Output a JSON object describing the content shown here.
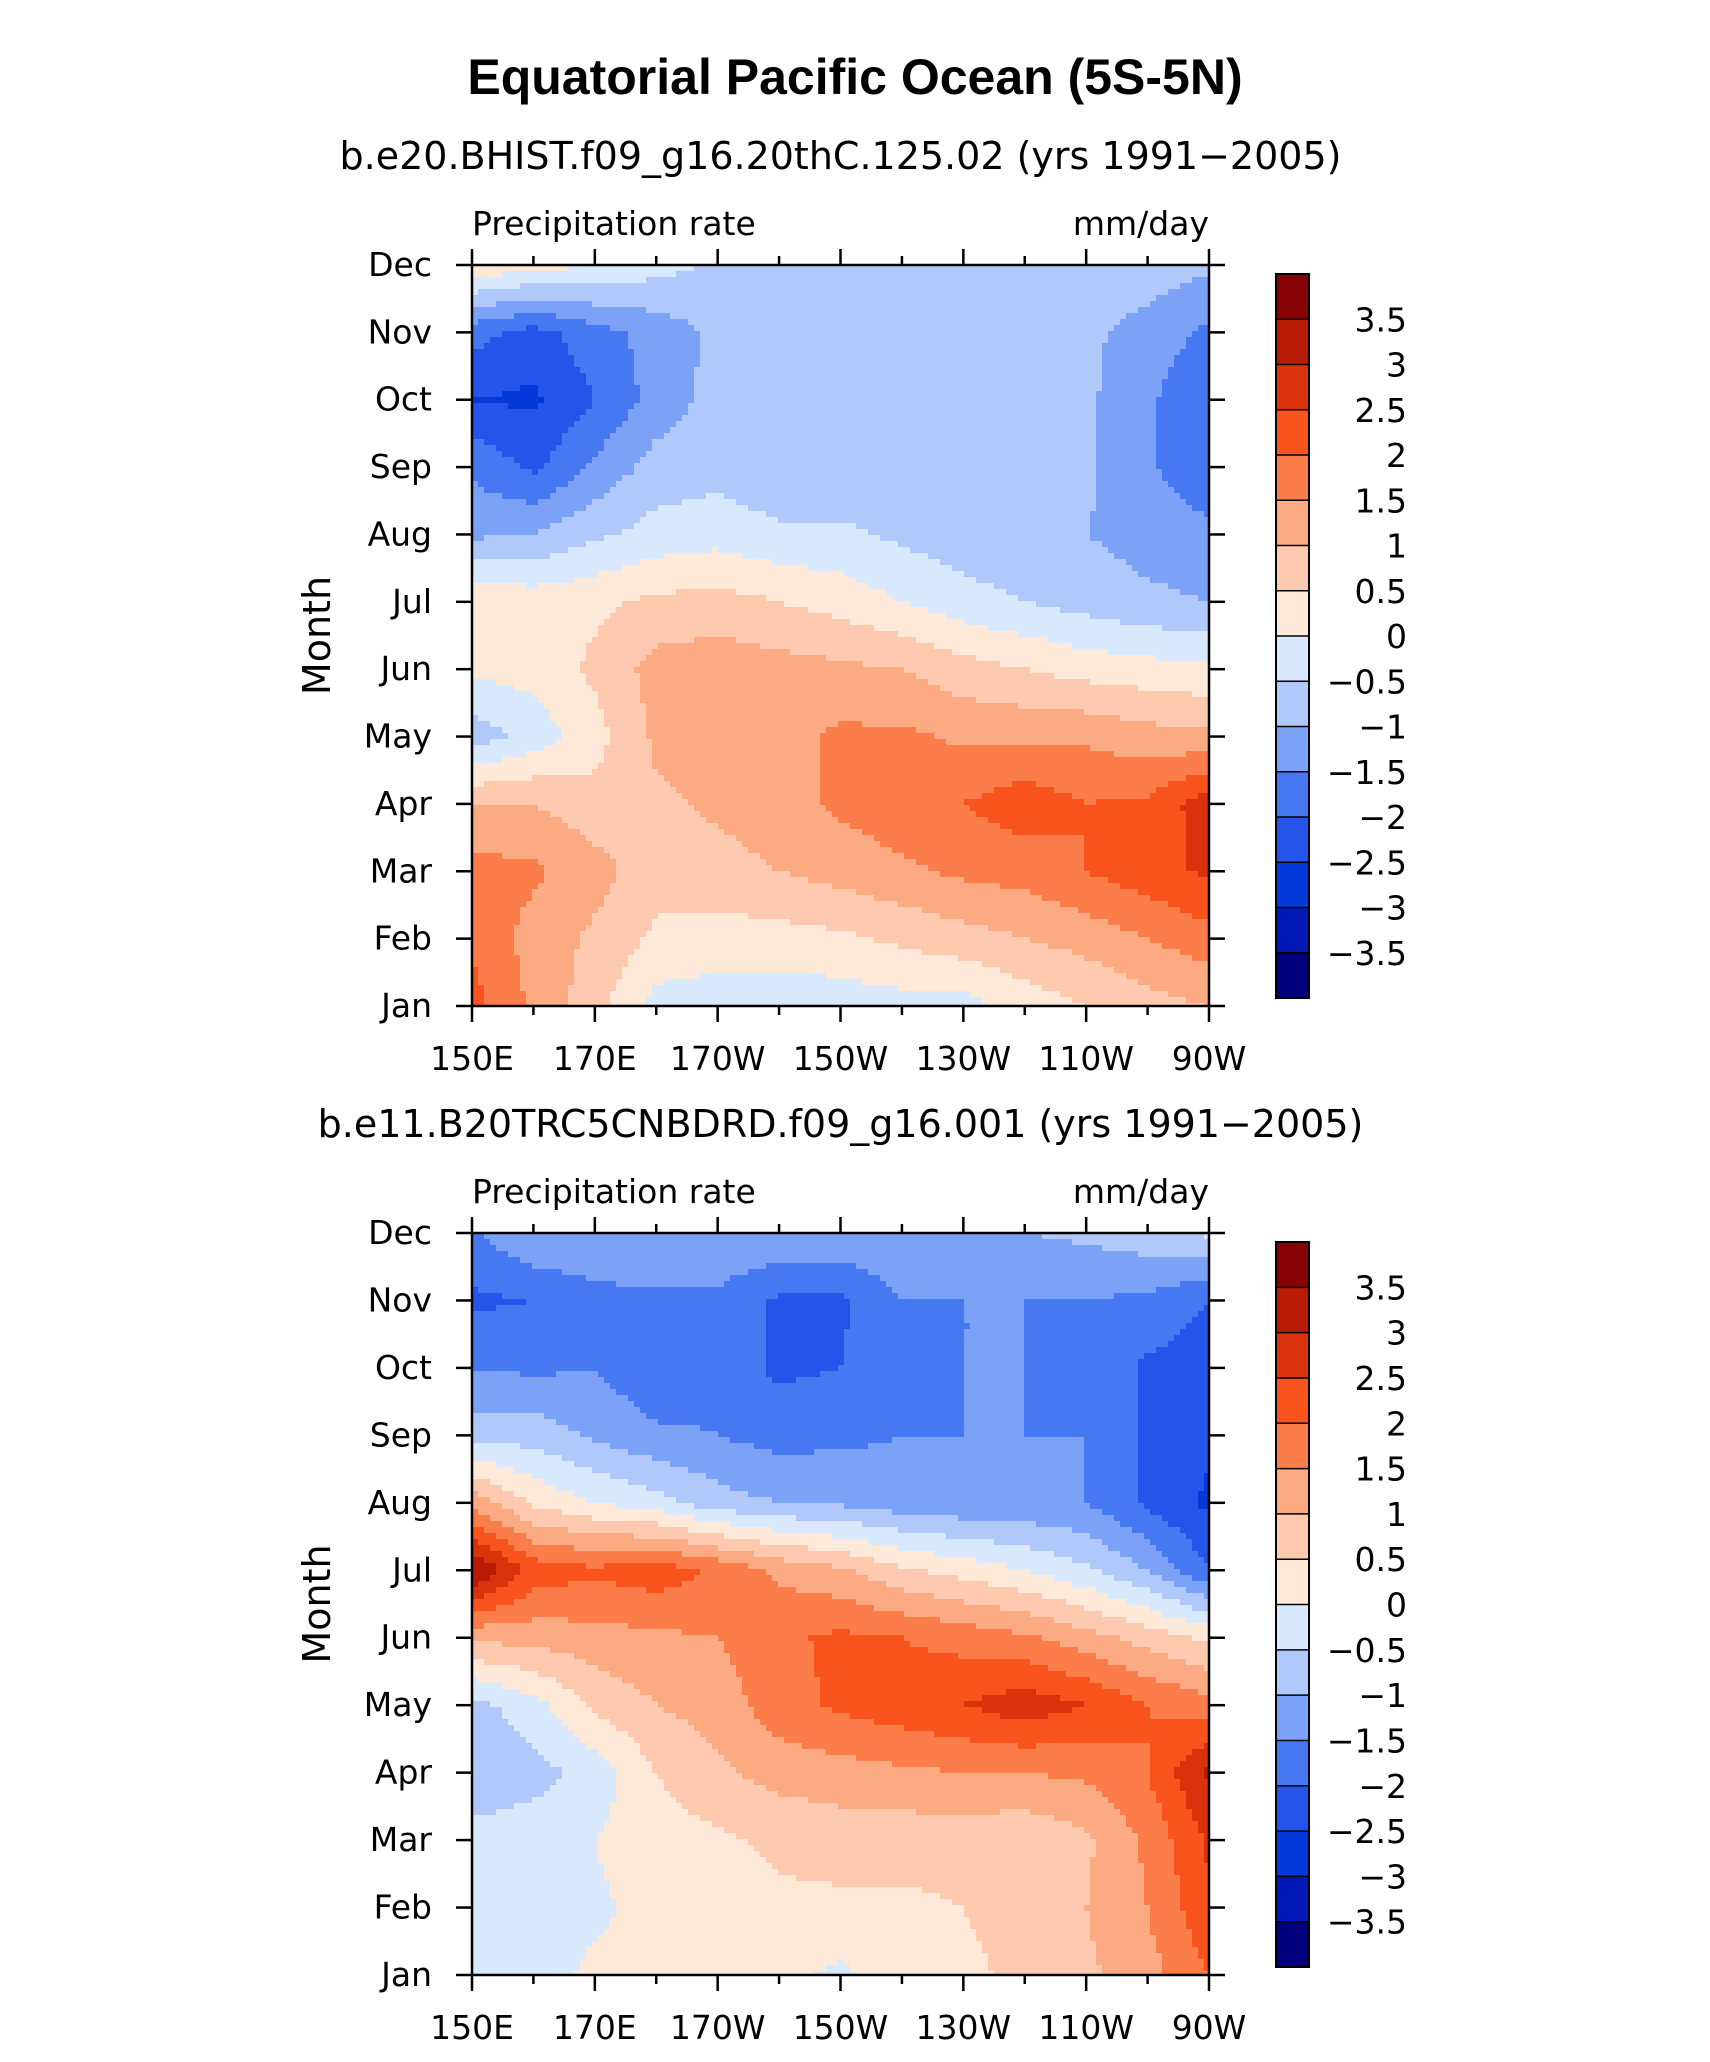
{
  "title": "Equatorial Pacific Ocean (5S-5N)",
  "colors": [
    "#00007f",
    "#0018b6",
    "#0538d8",
    "#2554ea",
    "#4678f2",
    "#7ba2f6",
    "#b1c9fa",
    "#d8e8fd",
    "#fee8d8",
    "#fdcab0",
    "#fbaa81",
    "#fb7e4a",
    "#f9531e",
    "#da330b",
    "#b81b06",
    "#870303"
  ],
  "colorbar_labels": [
    "3.5",
    "3",
    "2.5",
    "2",
    "1.5",
    "1",
    "0.5",
    "0",
    "−0.5",
    "−1",
    "−1.5",
    "−2",
    "−2.5",
    "−3",
    "−3.5"
  ],
  "chart_data": [
    {
      "type": "heatmap",
      "subtitle": "b.e20.BHIST.f09_g16.20thC.125.02 (yrs 1991−2005)",
      "left_label": "Precipitation rate",
      "right_label": "mm/day",
      "ylabel": "Month",
      "x_ticklabels": [
        "150E",
        "170E",
        "170W",
        "150W",
        "130W",
        "110W",
        "90W"
      ],
      "y_ticklabels": [
        "Jan",
        "Feb",
        "Mar",
        "Apr",
        "May",
        "Jun",
        "Jul",
        "Aug",
        "Sep",
        "Oct",
        "Nov",
        "Dec"
      ],
      "levels": [
        -3.5,
        -3,
        -2.5,
        -2,
        -1.5,
        -1,
        -0.5,
        0,
        0.5,
        1,
        1.5,
        2,
        2.5,
        3,
        3.5
      ],
      "x": [
        150,
        160,
        170,
        180,
        190,
        200,
        210,
        220,
        230,
        240,
        250,
        260,
        270
      ],
      "y": [
        "Jan",
        "Feb",
        "Mar",
        "Apr",
        "May",
        "Jun",
        "Jul",
        "Aug",
        "Sep",
        "Oct",
        "Nov",
        "Dec"
      ],
      "z": [
        [
          2.2,
          1.4,
          0.7,
          -0.2,
          -0.3,
          -0.3,
          -0.3,
          -0.2,
          -0.2,
          0.2,
          0.5,
          0.8,
          1.0
        ],
        [
          1.9,
          1.3,
          0.9,
          0.4,
          0.3,
          0.3,
          0.4,
          0.6,
          0.8,
          1.0,
          1.2,
          1.5,
          1.8
        ],
        [
          1.7,
          1.6,
          1.2,
          0.7,
          0.8,
          1.0,
          1.2,
          1.4,
          1.6,
          1.7,
          2.0,
          2.3,
          2.6
        ],
        [
          1.0,
          1.0,
          0.7,
          0.9,
          1.1,
          1.3,
          1.6,
          1.8,
          2.0,
          2.3,
          2.0,
          2.1,
          2.8
        ],
        [
          -0.8,
          -0.3,
          0.3,
          1.1,
          1.3,
          1.3,
          1.6,
          1.6,
          1.4,
          1.4,
          1.4,
          1.2,
          1.1
        ],
        [
          0.1,
          0.2,
          0.6,
          1.2,
          1.3,
          1.2,
          1.1,
          1.0,
          0.7,
          0.5,
          0.3,
          0.2,
          0.1
        ],
        [
          0.4,
          0.3,
          0.4,
          0.6,
          0.7,
          0.5,
          0.3,
          0.0,
          -0.3,
          -0.5,
          -0.7,
          -0.9,
          -1.0
        ],
        [
          -1.1,
          -1.0,
          -0.6,
          -0.3,
          -0.2,
          -0.4,
          -0.4,
          -0.6,
          -0.8,
          -0.9,
          -1.0,
          -1.2,
          -1.3
        ],
        [
          -1.6,
          -2.1,
          -1.4,
          -0.8,
          -0.7,
          -0.9,
          -0.9,
          -0.9,
          -0.9,
          -0.8,
          -0.9,
          -1.4,
          -2.0
        ],
        [
          -2.5,
          -2.6,
          -2.0,
          -1.3,
          -0.8,
          -0.8,
          -0.8,
          -0.8,
          -0.8,
          -0.8,
          -0.9,
          -1.4,
          -2.0
        ],
        [
          -1.8,
          -2.2,
          -1.7,
          -1.3,
          -0.9,
          -0.8,
          -0.8,
          -0.8,
          -0.8,
          -0.8,
          -0.9,
          -1.2,
          -1.6
        ],
        [
          0.4,
          0.2,
          0.0,
          -0.3,
          -0.6,
          -0.6,
          -0.6,
          -0.6,
          -0.6,
          -0.6,
          -0.6,
          -0.7,
          -0.9
        ]
      ]
    },
    {
      "type": "heatmap",
      "subtitle": "b.e11.B20TRC5CNBDRD.f09_g16.001 (yrs 1991−2005)",
      "left_label": "Precipitation rate",
      "right_label": "mm/day",
      "ylabel": "Month",
      "x_ticklabels": [
        "150E",
        "170E",
        "170W",
        "150W",
        "130W",
        "110W",
        "90W"
      ],
      "y_ticklabels": [
        "Jan",
        "Feb",
        "Mar",
        "Apr",
        "May",
        "Jun",
        "Jul",
        "Aug",
        "Sep",
        "Oct",
        "Nov",
        "Dec"
      ],
      "levels": [
        -3.5,
        -3,
        -2.5,
        -2,
        -1.5,
        -1,
        -0.5,
        0,
        0.5,
        1,
        1.5,
        2,
        2.5,
        3,
        3.5
      ],
      "x": [
        150,
        160,
        170,
        180,
        190,
        200,
        210,
        220,
        230,
        240,
        250,
        260,
        270
      ],
      "y": [
        "Jan",
        "Feb",
        "Mar",
        "Apr",
        "May",
        "Jun",
        "Jul",
        "Aug",
        "Sep",
        "Oct",
        "Nov",
        "Dec"
      ],
      "z": [
        [
          -0.3,
          -0.2,
          0.1,
          0.1,
          0.1,
          0.1,
          -0.1,
          0.2,
          0.4,
          0.6,
          0.9,
          1.3,
          2.0
        ],
        [
          -0.4,
          -0.3,
          -0.1,
          0.2,
          0.3,
          0.4,
          0.4,
          0.4,
          0.5,
          0.7,
          1.0,
          1.5,
          2.4
        ],
        [
          -0.3,
          -0.2,
          0.0,
          0.3,
          0.4,
          0.6,
          0.7,
          0.7,
          0.7,
          0.6,
          0.9,
          1.6,
          2.6
        ],
        [
          -0.9,
          -0.7,
          -0.3,
          0.5,
          0.9,
          1.2,
          1.3,
          1.4,
          1.5,
          1.5,
          1.6,
          2.0,
          3.1
        ],
        [
          -0.7,
          -0.2,
          0.6,
          1.0,
          1.2,
          1.8,
          2.1,
          2.3,
          2.5,
          2.8,
          2.5,
          2.0,
          1.7
        ],
        [
          1.1,
          1.2,
          1.3,
          1.4,
          1.5,
          1.9,
          2.1,
          2.0,
          1.8,
          1.6,
          1.2,
          0.8,
          0.4
        ],
        [
          3.6,
          2.3,
          2.1,
          2.3,
          1.9,
          1.4,
          1.1,
          0.6,
          0.3,
          0.0,
          -0.4,
          -1.0,
          -2.0
        ],
        [
          1.3,
          0.4,
          0.0,
          -0.3,
          -0.8,
          -1.0,
          -1.1,
          -1.3,
          -1.4,
          -1.4,
          -1.5,
          -2.1,
          -2.6
        ],
        [
          -0.7,
          -0.7,
          -1.1,
          -1.4,
          -1.5,
          -1.7,
          -1.6,
          -1.5,
          -1.5,
          -1.5,
          -1.5,
          -2.1,
          -2.4
        ],
        [
          -1.5,
          -1.6,
          -1.5,
          -1.9,
          -1.7,
          -2.1,
          -2.0,
          -1.6,
          -1.5,
          -1.5,
          -1.6,
          -2.1,
          -2.3
        ],
        [
          -2.1,
          -2.0,
          -1.7,
          -1.6,
          -1.6,
          -2.1,
          -2.1,
          -1.5,
          -1.5,
          -1.5,
          -1.5,
          -1.6,
          -2.0
        ],
        [
          -1.6,
          -1.0,
          -1.0,
          -1.0,
          -1.1,
          -1.0,
          -1.1,
          -1.0,
          -1.0,
          -1.0,
          -0.9,
          -0.7,
          -0.4
        ]
      ]
    }
  ]
}
